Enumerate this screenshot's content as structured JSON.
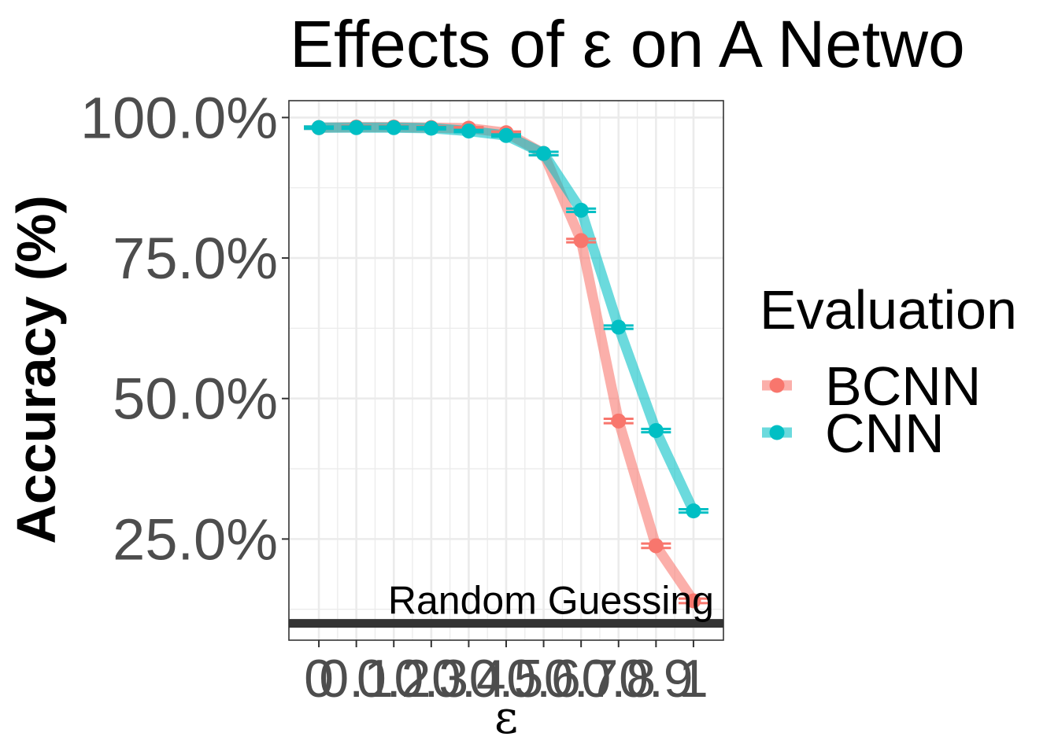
{
  "chart_data": {
    "type": "line",
    "title": "Effects of ε on A Netwo",
    "xlabel": "ε",
    "ylabel": "Accuracy (%)",
    "x": [
      0,
      0.1,
      0.2,
      0.3,
      0.4,
      0.5,
      0.6,
      0.7,
      0.8,
      0.9,
      1
    ],
    "x_tick_labels": [
      "0",
      "0.1",
      "0.2",
      "0.3",
      "0.4",
      "0.5",
      "0.6",
      "0.7",
      "0.8",
      "0.9",
      "1"
    ],
    "xlim": [
      -0.08,
      1.08
    ],
    "ylim": [
      0.07,
      1.03
    ],
    "y_ticks": [
      0.25,
      0.5,
      0.75,
      1.0
    ],
    "y_tick_labels": [
      "25.0%",
      "50.0%",
      "75.0%",
      "100.0%"
    ],
    "grid": true,
    "legend": {
      "title": "Evaluation",
      "position": "right"
    },
    "series": [
      {
        "name": "BCNN",
        "color": "#F8766D",
        "values": [
          0.982,
          0.983,
          0.983,
          0.982,
          0.981,
          0.973,
          0.936,
          0.781,
          0.46,
          0.238,
          0.14
        ],
        "error": [
          0.002,
          0.002,
          0.002,
          0.002,
          0.002,
          0.002,
          0.003,
          0.003,
          0.004,
          0.004,
          0.004
        ]
      },
      {
        "name": "CNN",
        "color": "#00BFC4",
        "values": [
          0.982,
          0.982,
          0.982,
          0.981,
          0.976,
          0.968,
          0.936,
          0.835,
          0.627,
          0.443,
          0.3
        ],
        "error": [
          0.002,
          0.002,
          0.002,
          0.002,
          0.002,
          0.002,
          0.003,
          0.003,
          0.003,
          0.003,
          0.003
        ]
      }
    ],
    "reference_line": {
      "label": "Random Guessing",
      "value": 0.1
    }
  }
}
